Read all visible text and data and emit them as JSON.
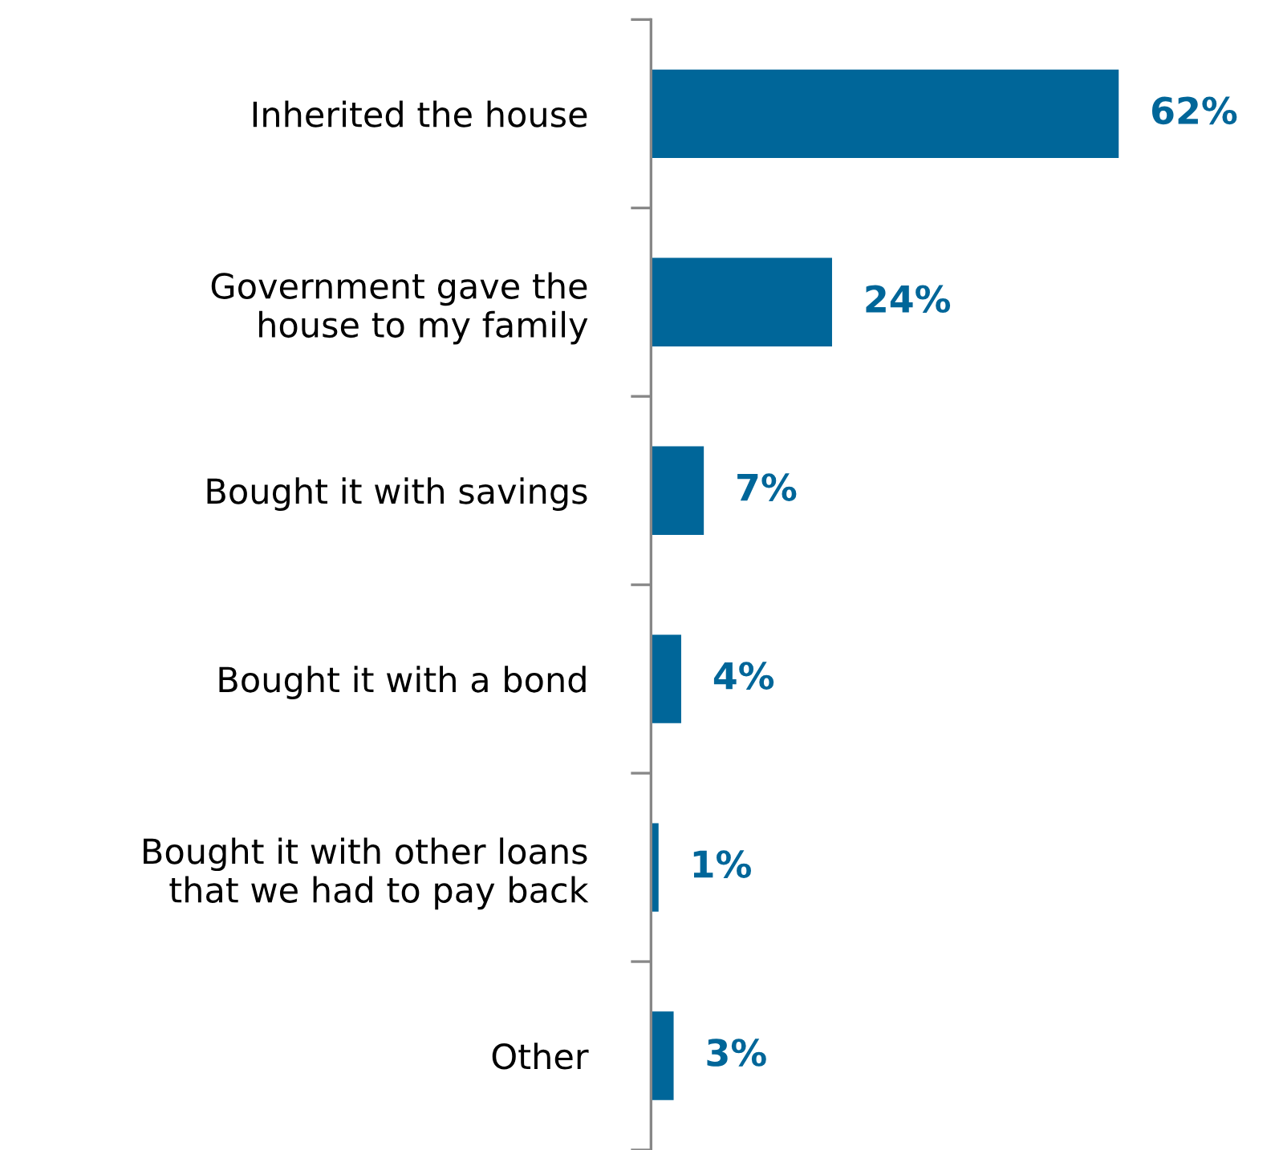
{
  "chart_data": {
    "type": "bar",
    "orientation": "horizontal",
    "categories": [
      "Inherited the house",
      "Government gave the\nhouse to my family",
      "Bought it with savings",
      "Bought it with a bond",
      "Bought it with other loans\nthat we had to pay back",
      "Other"
    ],
    "values": [
      62,
      24,
      7,
      4,
      1,
      3
    ],
    "value_labels": [
      "62%",
      "24%",
      "7%",
      "4%",
      "1%",
      "3%"
    ],
    "color": "#006699",
    "grid": false,
    "legend": false,
    "tick_labels": "y"
  }
}
